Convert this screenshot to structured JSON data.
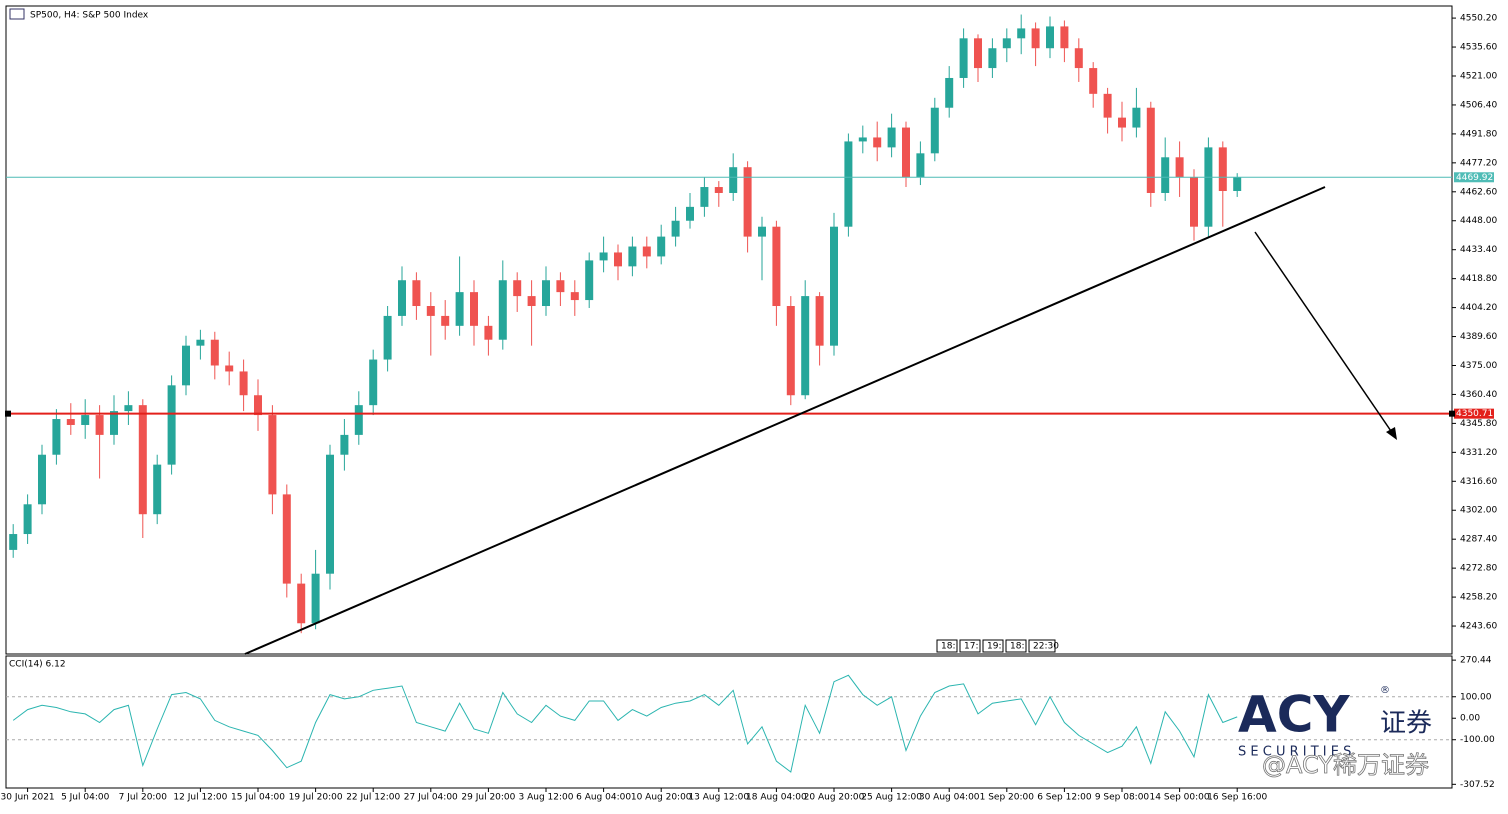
{
  "chart_data": [
    {
      "type": "candlestick",
      "title": "SP500, H4:  S&P 500 Index",
      "categories": [
        null,
        "30 Jun 2021",
        null,
        null,
        null,
        "5 Jul 04:00",
        null,
        null,
        null,
        "7 Jul 20:00",
        null,
        null,
        null,
        "12 Jul 12:00",
        null,
        null,
        null,
        "15 Jul 04:00",
        null,
        null,
        null,
        "19 Jul 20:00",
        null,
        null,
        null,
        "22 Jul 12:00",
        null,
        null,
        null,
        "27 Jul 04:00",
        null,
        null,
        null,
        "29 Jul 20:00",
        null,
        null,
        null,
        "3 Aug 12:00",
        null,
        null,
        null,
        "6 Aug 04:00",
        null,
        null,
        null,
        "10 Aug 20:00",
        null,
        null,
        null,
        "13 Aug 12:00",
        null,
        null,
        null,
        "18 Aug 04:00",
        null,
        null,
        null,
        "20 Aug 20:00",
        null,
        null,
        null,
        "25 Aug 12:00",
        null,
        null,
        null,
        "30 Aug 04:00",
        null,
        null,
        null,
        "1 Sep 20:00",
        null,
        null,
        null,
        "6 Sep 12:00",
        null,
        null,
        null,
        "9 Sep 08:00",
        null,
        null,
        null,
        "14 Sep 00:00",
        null,
        null,
        null,
        "16 Sep 16:00"
      ],
      "open": [
        4282,
        4290,
        4305,
        4330,
        4348,
        4345,
        4350,
        4340,
        4352,
        4355,
        4300,
        4325,
        4365,
        4385,
        4388,
        4375,
        4372,
        4360,
        4350,
        4310,
        4265,
        4245,
        4270,
        4330,
        4340,
        4355,
        4378,
        4400,
        4418,
        4405,
        4400,
        4395,
        4412,
        4395,
        4388,
        4418,
        4410,
        4405,
        4418,
        4412,
        4408,
        4428,
        4432,
        4425,
        4435,
        4430,
        4440,
        4448,
        4455,
        4465,
        4462,
        4475,
        4440,
        4445,
        4405,
        4360,
        4410,
        4385,
        4445,
        4488,
        4490,
        4485,
        4495,
        4470,
        4482,
        4505,
        4520,
        4540,
        4525,
        4535,
        4540,
        4545,
        4535,
        4546,
        4535,
        4525,
        4512,
        4500,
        4495,
        4505,
        4462,
        4480,
        4470,
        4445,
        4485,
        4463
      ],
      "high": [
        4295,
        4310,
        4335,
        4353,
        4356,
        4358,
        4355,
        4360,
        4362,
        4358,
        4330,
        4370,
        4390,
        4393,
        4392,
        4382,
        4378,
        4368,
        4355,
        4315,
        4270,
        4282,
        4335,
        4348,
        4362,
        4383,
        4405,
        4425,
        4422,
        4412,
        4408,
        4430,
        4418,
        4400,
        4428,
        4422,
        4418,
        4425,
        4422,
        4418,
        4432,
        4440,
        4436,
        4440,
        4440,
        4446,
        4455,
        4462,
        4470,
        4468,
        4482,
        4478,
        4450,
        4448,
        4410,
        4418,
        4412,
        4452,
        4492,
        4496,
        4498,
        4502,
        4498,
        4488,
        4510,
        4526,
        4545,
        4542,
        4540,
        4545,
        4552,
        4548,
        4551,
        4549,
        4540,
        4528,
        4515,
        4508,
        4515,
        4508,
        4490,
        4488,
        4474,
        4490,
        4488,
        4472
      ],
      "low": [
        4278,
        4285,
        4300,
        4325,
        4340,
        4338,
        4318,
        4335,
        4345,
        4288,
        4295,
        4320,
        4360,
        4378,
        4368,
        4365,
        4352,
        4342,
        4300,
        4258,
        4240,
        4242,
        4262,
        4322,
        4335,
        4350,
        4372,
        4395,
        4398,
        4380,
        4388,
        4390,
        4385,
        4380,
        4383,
        4402,
        4385,
        4400,
        4405,
        4400,
        4404,
        4422,
        4418,
        4420,
        4424,
        4426,
        4435,
        4444,
        4450,
        4455,
        4458,
        4432,
        4418,
        4395,
        4355,
        4358,
        4375,
        4380,
        4440,
        4482,
        4478,
        4480,
        4465,
        4466,
        4478,
        4500,
        4515,
        4518,
        4520,
        4528,
        4532,
        4526,
        4530,
        4528,
        4518,
        4505,
        4492,
        4488,
        4490,
        4455,
        4458,
        4460,
        4438,
        4440,
        4445,
        4460
      ],
      "close": [
        4290,
        4305,
        4330,
        4348,
        4345,
        4350,
        4340,
        4352,
        4355,
        4300,
        4325,
        4365,
        4385,
        4388,
        4375,
        4372,
        4360,
        4350,
        4310,
        4265,
        4245,
        4270,
        4330,
        4340,
        4355,
        4378,
        4400,
        4418,
        4405,
        4400,
        4395,
        4412,
        4395,
        4388,
        4418,
        4410,
        4405,
        4418,
        4412,
        4408,
        4428,
        4432,
        4425,
        4435,
        4430,
        4440,
        4448,
        4455,
        4465,
        4462,
        4475,
        4440,
        4445,
        4405,
        4360,
        4410,
        4385,
        4445,
        4488,
        4490,
        4485,
        4495,
        4470,
        4482,
        4505,
        4520,
        4540,
        4525,
        4535,
        4540,
        4545,
        4535,
        4546,
        4535,
        4525,
        4512,
        4500,
        4495,
        4505,
        4462,
        4480,
        4470,
        4445,
        4485,
        4463,
        4469.92
      ],
      "up_color": "#26a69a",
      "down_color": "#ef5350",
      "ylim": [
        4229.5,
        4556.3
      ],
      "yticks": [
        {
          "value": 4550.2,
          "label": "4550.20"
        },
        {
          "value": 4535.6,
          "label": "4535.60"
        },
        {
          "value": 4521,
          "label": "4521.00"
        },
        {
          "value": 4506.4,
          "label": "4506.40"
        },
        {
          "value": 4491.8,
          "label": "4491.80"
        },
        {
          "value": 4477.2,
          "label": "4477.20"
        },
        {
          "value": 4462.6,
          "label": "4462.60"
        },
        {
          "value": 4448,
          "label": "4448.00"
        },
        {
          "value": 4433.4,
          "label": "4433.40"
        },
        {
          "value": 4418.8,
          "label": "4418.80"
        },
        {
          "value": 4404.2,
          "label": "4404.20"
        },
        {
          "value": 4389.6,
          "label": "4389.60"
        },
        {
          "value": 4375,
          "label": "4375.00"
        },
        {
          "value": 4360.4,
          "label": "4360.40"
        },
        {
          "value": 4345.8,
          "label": "4345.80"
        },
        {
          "value": 4331.2,
          "label": "4331.20"
        },
        {
          "value": 4316.6,
          "label": "4316.60"
        },
        {
          "value": 4302,
          "label": "4302.00"
        },
        {
          "value": 4287.4,
          "label": "4287.40"
        },
        {
          "value": 4272.8,
          "label": "4272.80"
        },
        {
          "value": 4258.2,
          "label": "4258.20"
        },
        {
          "value": 4243.6,
          "label": "4243.60"
        }
      ],
      "price_lines": [
        {
          "value": 4469.92,
          "color": "#4fbcb6"
        },
        {
          "value": 4350.71,
          "color": "#e3201b"
        }
      ],
      "time_markers": [
        "18:",
        "17:",
        "19:",
        "18:",
        "22:30"
      ]
    },
    {
      "type": "line",
      "title": "CCI(14) 6.12",
      "color": "#2bb5b0",
      "values": [
        -10,
        40,
        60,
        50,
        30,
        20,
        -20,
        40,
        60,
        -220,
        -50,
        110,
        120,
        90,
        -10,
        -40,
        -60,
        -80,
        -150,
        -230,
        -200,
        -20,
        110,
        90,
        100,
        130,
        140,
        150,
        -20,
        -40,
        -60,
        70,
        -50,
        -70,
        120,
        20,
        -20,
        60,
        10,
        -10,
        80,
        80,
        -10,
        40,
        10,
        50,
        70,
        80,
        110,
        60,
        130,
        -120,
        -40,
        -200,
        -250,
        60,
        -70,
        170,
        200,
        110,
        60,
        100,
        -150,
        10,
        120,
        150,
        160,
        20,
        70,
        80,
        90,
        -30,
        100,
        -20,
        -80,
        -120,
        -160,
        -130,
        -40,
        -210,
        30,
        -60,
        -180,
        110,
        -20,
        6.12
      ],
      "ylim": [
        -320,
        285
      ],
      "yticks": [
        270.44,
        {
          "value": 100,
          "label": "100.00"
        },
        {
          "value": 0,
          "label": "0.00"
        },
        {
          "value": -100,
          "label": "-100.00"
        },
        -307.52
      ],
      "levels": [
        100,
        -100
      ]
    }
  ],
  "watermark": {
    "logo": "ACY",
    "cn": "证券",
    "reg": "®",
    "sub": "S E C U R I T I E S",
    "handle": "@ACY稀万证券"
  }
}
